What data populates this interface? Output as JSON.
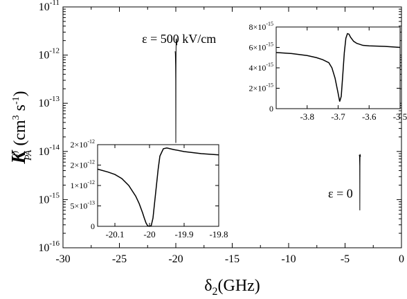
{
  "chart_data": [
    {
      "type": "line",
      "role": "main",
      "xlabel": {
        "base": "δ",
        "sub": "2",
        "rest": "(GHz)"
      },
      "ylabel": {
        "base": "K",
        "sup": "(2)",
        "sub": "PA",
        "units": "(cm",
        "units_sup1": "3",
        "units_mid": " s",
        "units_sup2": "-1",
        "units_end": ")"
      },
      "xlim": [
        -30,
        0
      ],
      "ylim": [
        1e-16,
        1e-11
      ],
      "yscale": "log",
      "xticks": [
        -30,
        -25,
        -20,
        -15,
        -10,
        -5,
        0
      ],
      "xtick_labels": [
        "-30",
        "-25",
        "-20",
        "-15",
        "-10",
        "-5",
        "0"
      ],
      "yticks": [
        {
          "value": 1e-11,
          "base": "10",
          "exp": "-11"
        },
        {
          "value": 1e-12,
          "base": "10",
          "exp": "-12"
        },
        {
          "value": 1e-13,
          "base": "10",
          "exp": "-13"
        },
        {
          "value": 1e-14,
          "base": "10",
          "exp": "-14"
        },
        {
          "value": 1e-15,
          "base": "10",
          "exp": "-15"
        },
        {
          "value": 1e-16,
          "base": "10",
          "exp": "-16"
        }
      ],
      "annotations": [
        {
          "text": "ε = 500 kV/cm",
          "x": -23.0,
          "y": 1.8e-12
        },
        {
          "text": "ε = 0",
          "x": -6.5,
          "y": 1.1e-15
        }
      ],
      "series": [
        {
          "x": [
            -20.06,
            -20.04,
            -20.02,
            -20.01,
            -20.005,
            -20.0,
            -19.995,
            -19.99,
            -19.98,
            -19.97,
            -19.95,
            -19.93,
            -19.9
          ],
          "y": [
            1.2e-12,
            1.05e-12,
            6e-13,
            3e-13,
            8e-14,
            1.5e-14,
            6e-14,
            4e-13,
            1.3e-12,
            2.1e-12,
            2.2e-12,
            1.9e-12,
            1.6e-12
          ]
        },
        {
          "x": [
            -3.75,
            -3.72,
            -3.7,
            -3.695,
            -3.69,
            -3.685,
            -3.68,
            -3.67,
            -3.65,
            -3.62
          ],
          "y": [
            8.5e-15,
            8e-15,
            5e-15,
            2e-15,
            6e-16,
            2e-15,
            6e-15,
            8.8e-15,
            8.3e-15,
            7.8e-15
          ]
        }
      ]
    },
    {
      "type": "line",
      "role": "inset-left",
      "xlim": [
        -20.15,
        -19.8
      ],
      "ylim": [
        0,
        2e-12
      ],
      "xticks": [
        -20.1,
        -20.0,
        -19.9,
        -19.8
      ],
      "xtick_labels": [
        "-20.1",
        "-20",
        "-19.9",
        "-19.8"
      ],
      "yticks": [
        {
          "value": 0,
          "mant": "0",
          "exp": ""
        },
        {
          "value": 5e-13,
          "mant": "5×10",
          "exp": "-13"
        },
        {
          "value": 1e-12,
          "mant": "1×10",
          "exp": "-12"
        },
        {
          "value": 1.5e-12,
          "mant": "2×10",
          "exp": "-12"
        },
        {
          "value": 2e-12,
          "mant": "2×10",
          "exp": "-12"
        }
      ],
      "series": [
        {
          "x": [
            -20.15,
            -20.12,
            -20.1,
            -20.08,
            -20.06,
            -20.04,
            -20.03,
            -20.02,
            -20.015,
            -20.01,
            -20.005,
            -20.0,
            -19.995,
            -19.99,
            -19.985,
            -19.98,
            -19.975,
            -19.97,
            -19.96,
            -19.95,
            -19.93,
            -19.9,
            -19.85,
            -19.8
          ],
          "y": [
            1.4e-12,
            1.33e-12,
            1.27e-12,
            1.17e-12,
            1e-12,
            7.4e-13,
            5.6e-13,
            3.3e-13,
            2e-13,
            8e-14,
            1e-14,
            0,
            2e-14,
            2e-13,
            6e-13,
            1e-12,
            1.4e-12,
            1.72e-12,
            1.9e-12,
            1.92e-12,
            1.88e-12,
            1.83e-12,
            1.78e-12,
            1.75e-12
          ]
        }
      ]
    },
    {
      "type": "line",
      "role": "inset-right",
      "xlim": [
        -3.9,
        -3.5
      ],
      "ylim": [
        0,
        8e-15
      ],
      "xticks": [
        -3.8,
        -3.7,
        -3.6,
        -3.5
      ],
      "xtick_labels": [
        "-3.8",
        "-3.7",
        "-3.6",
        "-3.5"
      ],
      "yticks": [
        {
          "value": 0,
          "mant": "0",
          "exp": ""
        },
        {
          "value": 2e-15,
          "mant": "2×10",
          "exp": "-15"
        },
        {
          "value": 4e-15,
          "mant": "4×10",
          "exp": "-15"
        },
        {
          "value": 6e-15,
          "mant": "6×10",
          "exp": "-15"
        },
        {
          "value": 8e-15,
          "mant": "8×10",
          "exp": "-15"
        }
      ],
      "series": [
        {
          "x": [
            -3.9,
            -3.85,
            -3.8,
            -3.77,
            -3.75,
            -3.73,
            -3.72,
            -3.71,
            -3.7,
            -3.695,
            -3.69,
            -3.685,
            -3.68,
            -3.675,
            -3.67,
            -3.665,
            -3.66,
            -3.65,
            -3.64,
            -3.62,
            -3.6,
            -3.55,
            -3.5
          ],
          "y": [
            5.5e-15,
            5.4e-15,
            5.2e-15,
            5e-15,
            4.8e-15,
            4.5e-15,
            4e-15,
            3e-15,
            1.5e-15,
            7e-16,
            1.2e-15,
            3.3e-15,
            5.5e-15,
            6.9e-15,
            7.35e-15,
            7.3e-15,
            7e-15,
            6.6e-15,
            6.4e-15,
            6.2e-15,
            6.15e-15,
            6.1e-15,
            6e-15
          ]
        }
      ]
    }
  ]
}
